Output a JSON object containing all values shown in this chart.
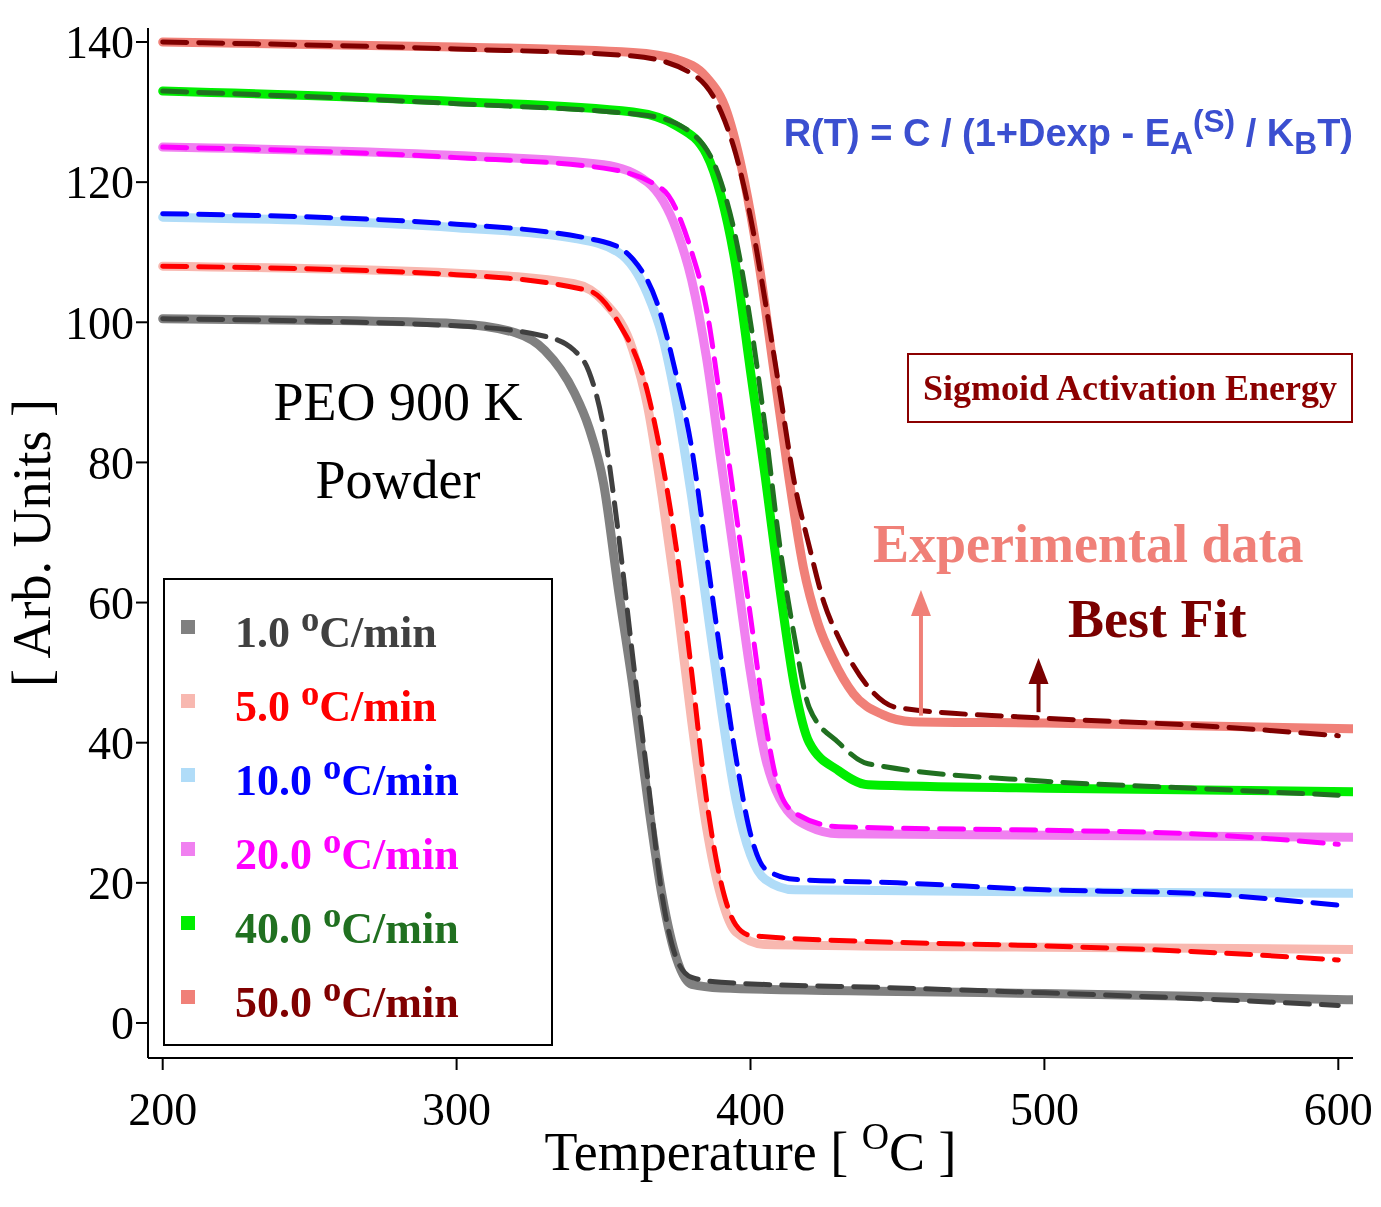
{
  "chart_data": {
    "type": "line",
    "xlabel": "Temperature [ $^{O}$C ]",
    "ylabel": "[ Arb. Units ]",
    "xlim": [
      195,
      605
    ],
    "xticks": [
      200,
      300,
      400,
      500,
      600
    ],
    "ylim": [
      -5,
      142
    ],
    "yticks": [
      0,
      20,
      40,
      60,
      80,
      100,
      120,
      140
    ],
    "legend": "bottom left",
    "annotations": [
      "PEO 900 K Powder",
      "R(T) = C / (1+Dexp - E$_{A}$$^{(S)}$ / K$_{B}$T)",
      "Sigmoid Activation Energy",
      {
        "text": "Experimental data",
        "x": 458,
        "y": 43
      },
      {
        "text": "Best Fit",
        "x": 498,
        "y": 43.5
      }
    ],
    "series": [
      {
        "name": "1.0 $^{o}$C/min",
        "color": "#808080",
        "line_style": "solid",
        "x": [
          200,
          250,
          300,
          320,
          330,
          340,
          345,
          350,
          355,
          360,
          365,
          370,
          375,
          380,
          390,
          450,
          500,
          550,
          605
        ],
        "values": [
          100.5,
          100.3,
          99.8,
          98.5,
          96,
          90,
          85,
          77,
          62,
          48,
          32,
          18,
          9,
          5.5,
          5,
          4.5,
          4.2,
          3.8,
          3.3
        ]
      },
      {
        "color": "#404040",
        "line_style": "dashed",
        "x": [
          200,
          300,
          330,
          340,
          345,
          350,
          355,
          360,
          365,
          370,
          375,
          380,
          390,
          450,
          500,
          550,
          600
        ],
        "values": [
          100.5,
          99.5,
          98,
          96,
          93,
          85,
          70,
          52,
          35,
          18,
          9,
          6.5,
          5.8,
          5,
          4.3,
          3.5,
          2.5
        ]
      },
      {
        "name": "5.0 $^{o}$C/min",
        "color": "#f8b8b0",
        "line_style": "solid",
        "x": [
          200,
          300,
          340,
          350,
          360,
          365,
          370,
          375,
          380,
          385,
          390,
          395,
          405,
          500,
          605
        ],
        "values": [
          108,
          107,
          105.5,
          103,
          96,
          88,
          75,
          60,
          43,
          28,
          18,
          13,
          11.2,
          10.8,
          10.5
        ]
      },
      {
        "color": "#ff0000",
        "line_style": "dashed",
        "x": [
          200,
          300,
          345,
          355,
          365,
          370,
          375,
          380,
          385,
          390,
          395,
          400,
          450,
          500,
          550,
          600
        ],
        "values": [
          108,
          106.8,
          104.5,
          100,
          90,
          80,
          67,
          50,
          32,
          20,
          14,
          12.5,
          11.5,
          11,
          10.2,
          9
        ]
      },
      {
        "name": "10.0 $^{o}$C/min",
        "color": "#b0dcf8",
        "line_style": "solid",
        "x": [
          200,
          300,
          340,
          355,
          365,
          370,
          375,
          380,
          385,
          390,
          395,
          400,
          405,
          415,
          500,
          605
        ],
        "values": [
          115,
          113.5,
          112,
          110,
          104,
          98,
          88,
          75,
          60,
          45,
          32,
          24,
          20.5,
          19,
          18.7,
          18.5
        ]
      },
      {
        "color": "#0000ff",
        "line_style": "dashed",
        "x": [
          200,
          300,
          350,
          360,
          368,
          375,
          380,
          385,
          390,
          395,
          400,
          405,
          415,
          450,
          500,
          550,
          600
        ],
        "values": [
          115.5,
          114,
          111.5,
          109,
          103,
          92,
          82,
          67,
          52,
          38,
          27,
          22,
          20.5,
          20,
          19,
          18.5,
          16.8
        ]
      },
      {
        "name": "20.0 $^{o}$C/min",
        "color": "#f080f0",
        "line_style": "solid",
        "x": [
          200,
          300,
          350,
          365,
          375,
          380,
          385,
          390,
          395,
          400,
          405,
          410,
          420,
          430,
          500,
          605
        ],
        "values": [
          125,
          123.8,
          122.5,
          120,
          113,
          106,
          95,
          80,
          65,
          50,
          38,
          32,
          28,
          27,
          26.8,
          26.5
        ]
      },
      {
        "color": "#ff00ff",
        "line_style": "dashed",
        "x": [
          200,
          300,
          350,
          370,
          380,
          385,
          390,
          395,
          400,
          405,
          410,
          415,
          430,
          500,
          550,
          600
        ],
        "values": [
          125,
          123.5,
          122,
          119,
          110,
          102,
          88,
          73,
          58,
          43,
          33,
          30,
          28,
          27.5,
          27,
          25.5
        ]
      },
      {
        "name": "40.0 $^{o}$C/min",
        "color": "#00ee00",
        "line_style": "solid",
        "x": [
          200,
          300,
          360,
          375,
          385,
          390,
          395,
          400,
          405,
          410,
          415,
          420,
          430,
          440,
          500,
          605
        ],
        "values": [
          133,
          131.5,
          130,
          128,
          124,
          118,
          108,
          93,
          78,
          62,
          48,
          40,
          36,
          34,
          33.5,
          33
        ]
      },
      {
        "color": "#207020",
        "line_style": "dashed",
        "x": [
          200,
          300,
          365,
          380,
          390,
          395,
          400,
          405,
          410,
          415,
          420,
          430,
          440,
          500,
          550,
          600
        ],
        "values": [
          133,
          131.2,
          129.5,
          127,
          120,
          112,
          100,
          85,
          68,
          55,
          45,
          40,
          37,
          34.5,
          33.5,
          32.5
        ]
      },
      {
        "name": "50.0 $^{o}$C/min",
        "color": "#f08078",
        "line_style": "solid",
        "x": [
          200,
          300,
          360,
          375,
          385,
          392,
          398,
          403,
          408,
          413,
          418,
          423,
          428,
          435,
          445,
          455,
          500,
          605
        ],
        "values": [
          140,
          139.3,
          138.5,
          137.5,
          135,
          130,
          120,
          108,
          93,
          78,
          65,
          57,
          52,
          47,
          44,
          43,
          42.8,
          42
        ]
      },
      {
        "color": "#800000",
        "line_style": "dashed",
        "x": [
          200,
          300,
          360,
          380,
          390,
          395,
          400,
          405,
          410,
          415,
          420,
          425,
          430,
          440,
          450,
          500,
          550,
          600
        ],
        "values": [
          140,
          139,
          138,
          135.5,
          130,
          124,
          115,
          103,
          90,
          77,
          68,
          60,
          55,
          48,
          45,
          43.5,
          42.5,
          41
        ]
      }
    ]
  }
}
